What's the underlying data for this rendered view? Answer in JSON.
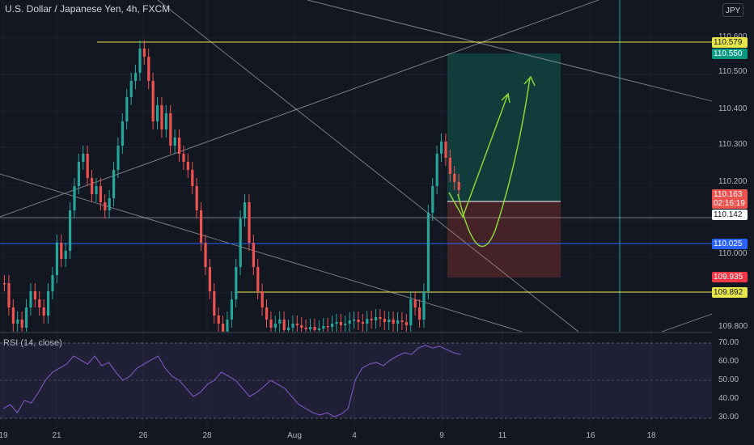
{
  "header": {
    "title": "U.S. Dollar / Japanese Yen, 4h, FXCM",
    "currency_button": "JPY"
  },
  "rsi": {
    "label": "RSI (14, close)"
  },
  "price_axis": {
    "ticks": [
      "110.600",
      "110.500",
      "110.400",
      "110.300",
      "110.200",
      "110.000",
      "109.800"
    ],
    "rsi_ticks": [
      "70.00",
      "60.00",
      "50.00",
      "40.00",
      "30.00"
    ]
  },
  "badges": {
    "yellow_top": "110.579",
    "green_target": "110.550",
    "current": "110.163",
    "countdown": "02:16:19",
    "white_level": "110.142",
    "blue_level": "110.025",
    "red_stop": "109.935",
    "yellow_bottom": "109.892"
  },
  "time_axis": {
    "ticks": [
      "19",
      "21",
      "26",
      "28",
      "Aug",
      "4",
      "9",
      "11",
      "16",
      "18"
    ]
  },
  "colors": {
    "background": "#131722",
    "bull": "#26a69a",
    "bear": "#ef5350",
    "yellow_line": "#e6e64a",
    "blue_line": "#2962ff",
    "rsi_line": "#7e57c2",
    "arrow": "#8bd636",
    "target_zone": "#12403f",
    "stop_zone": "#4a2429"
  },
  "chart_data": {
    "type": "candlestick",
    "timeframe": "4h",
    "ylim": [
      109.78,
      110.66
    ],
    "horizontal_levels": [
      110.579,
      110.142,
      110.025,
      109.892
    ],
    "position": {
      "entry": 110.142,
      "target": 110.55,
      "stop": 109.935
    },
    "rsi_ylim": [
      25,
      72
    ],
    "rsi_levels": [
      70,
      50,
      30
    ]
  }
}
